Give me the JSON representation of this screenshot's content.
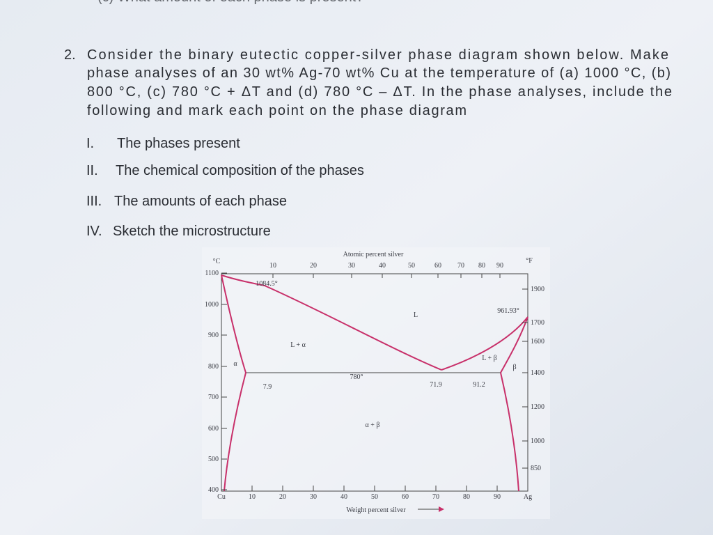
{
  "header_fragment": "(c) What amount of each phase is present?",
  "question": {
    "number": "2.",
    "lines": [
      "Consider the binary eutectic copper-silver phase diagram shown below. Make",
      "phase analyses of an 30 wt% Ag-70 wt% Cu at the temperature of (a) 1000 °C, (b)",
      "800 °C, (c) 780 °C + ΔT and (d) 780 °C – ΔT. In the phase analyses, include the",
      "following and mark each point on the phase diagram"
    ]
  },
  "items": [
    {
      "marker": "I.",
      "text": "The phases present"
    },
    {
      "marker": "II.",
      "text": "The chemical composition of the phases"
    },
    {
      "marker": "III.",
      "text": "The amounts of each phase"
    },
    {
      "marker": "IV.",
      "text": "Sketch the microstructure"
    }
  ],
  "figure": {
    "top_axis_title": "Atomic percent silver",
    "top_ticks": [
      "10",
      "20",
      "30",
      "40",
      "50",
      "60",
      "70",
      "80",
      "90"
    ],
    "left_unit": "°C",
    "right_unit": "°F",
    "left_ticks": [
      "1100",
      "1000",
      "900",
      "800",
      "700",
      "600",
      "500",
      "400"
    ],
    "right_ticks": [
      "1900",
      "1700",
      "1600",
      "1400",
      "1200",
      "1000",
      "850"
    ],
    "bottom_ticks": [
      "Cu",
      "10",
      "20",
      "30",
      "40",
      "50",
      "60",
      "70",
      "80",
      "90",
      "Ag"
    ],
    "bottom_axis_title": "Weight percent silver",
    "labels": [
      "1084.5°",
      "L",
      "961.93°",
      "L + α",
      "L + β",
      "β",
      "α",
      "780°",
      "7.9",
      "71.9",
      "91.2",
      "α + β"
    ]
  }
}
